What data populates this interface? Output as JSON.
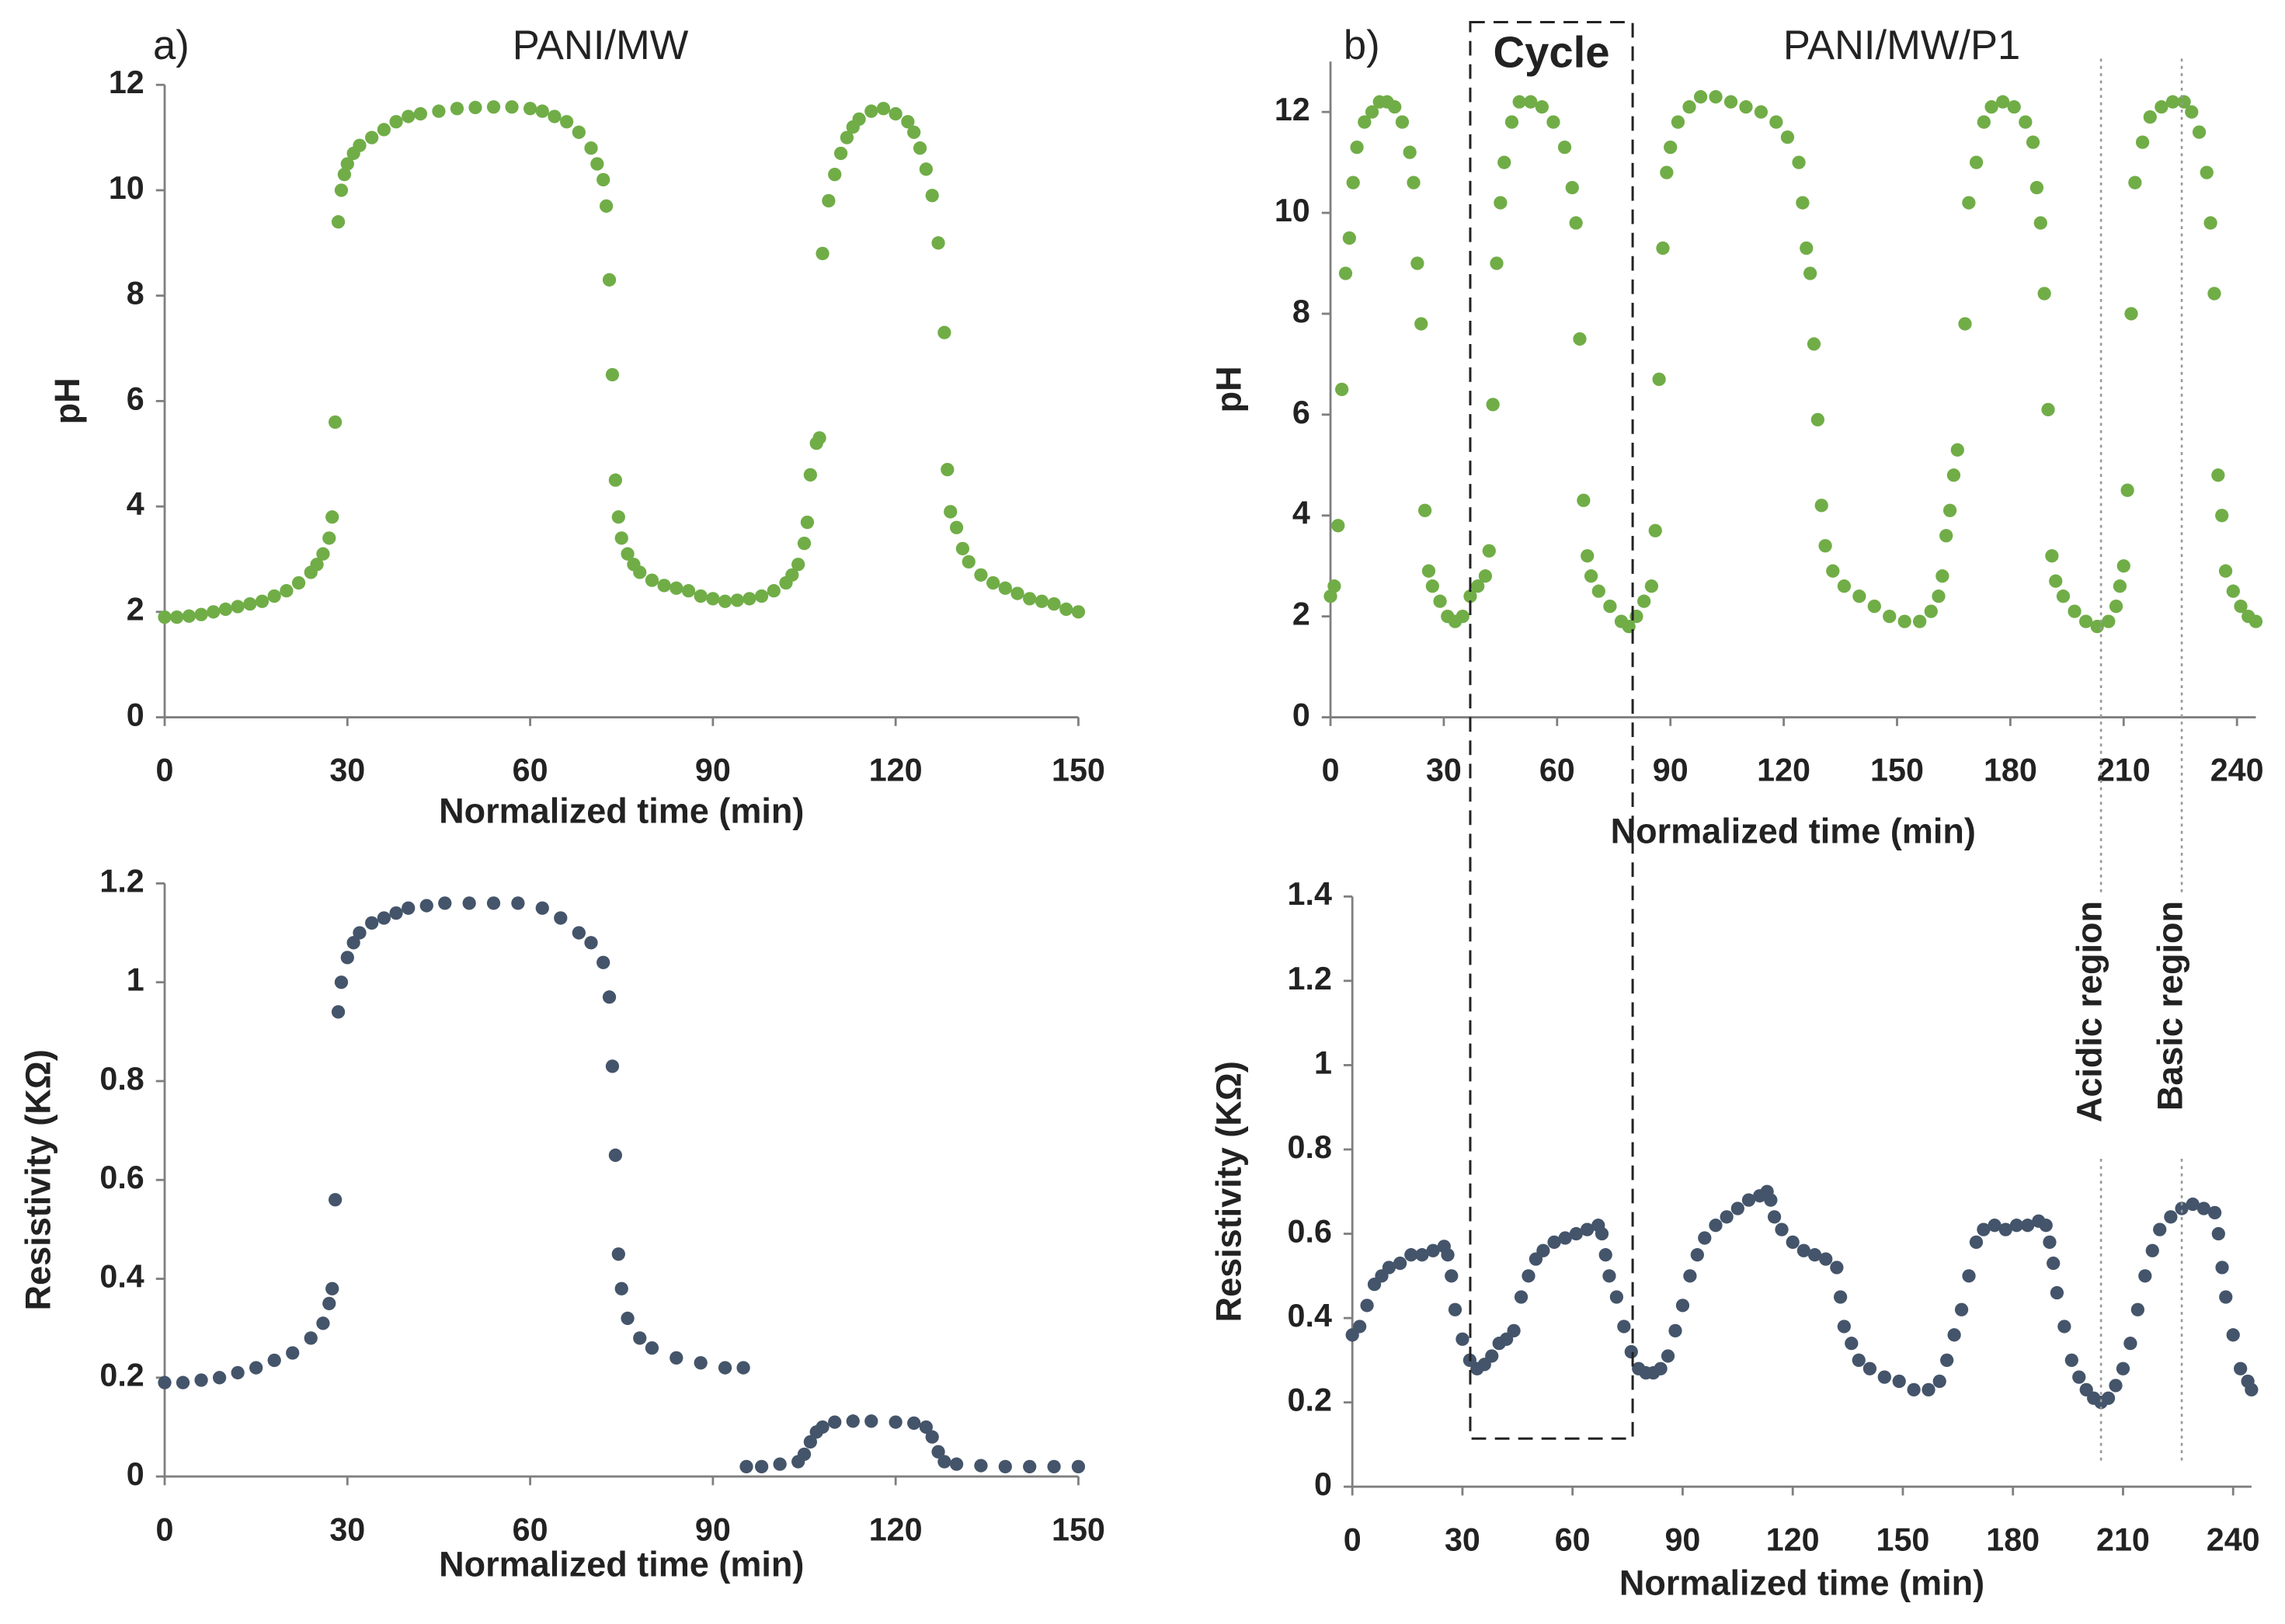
{
  "chart_data": [
    {
      "type": "scatter",
      "panel_label": "a)",
      "title": "PANI/MW",
      "xlabel": "Normalized time (min)",
      "ylabel": "pH",
      "color": "#70ad47",
      "xlim": [
        0,
        150
      ],
      "xticks": [
        0,
        30,
        60,
        90,
        120,
        150
      ],
      "ylim": [
        0,
        12
      ],
      "yticks": [
        0,
        2,
        4,
        6,
        8,
        10,
        12
      ],
      "x": [
        0,
        2,
        4,
        6,
        8,
        10,
        12,
        14,
        16,
        18,
        20,
        22,
        24,
        25,
        26,
        27,
        27.5,
        28,
        28.5,
        29,
        29.5,
        30,
        31,
        32,
        34,
        36,
        38,
        40,
        42,
        45,
        48,
        51,
        54,
        57,
        60,
        62,
        64,
        66,
        68,
        70,
        71,
        72,
        72.5,
        73,
        73.5,
        74,
        74.5,
        75,
        76,
        77,
        78,
        80,
        82,
        84,
        86,
        88,
        90,
        92,
        94,
        96,
        98,
        100,
        102,
        103,
        104,
        105,
        105.5,
        106,
        107,
        107.5,
        108,
        109,
        110,
        111,
        112,
        113,
        114,
        116,
        118,
        120,
        122,
        123,
        124,
        125,
        126,
        127,
        128,
        128.5,
        129,
        130,
        131,
        132,
        134,
        136,
        138,
        140,
        142,
        144,
        146,
        148,
        150
      ],
      "values": [
        1.9,
        1.9,
        1.92,
        1.95,
        2.0,
        2.05,
        2.1,
        2.15,
        2.2,
        2.3,
        2.4,
        2.55,
        2.75,
        2.9,
        3.1,
        3.4,
        3.8,
        5.6,
        9.4,
        10.0,
        10.3,
        10.5,
        10.7,
        10.85,
        11.0,
        11.15,
        11.3,
        11.4,
        11.45,
        11.5,
        11.55,
        11.57,
        11.58,
        11.58,
        11.55,
        11.5,
        11.4,
        11.3,
        11.1,
        10.8,
        10.5,
        10.2,
        9.7,
        8.3,
        6.5,
        4.5,
        3.8,
        3.4,
        3.1,
        2.9,
        2.75,
        2.6,
        2.5,
        2.45,
        2.4,
        2.3,
        2.25,
        2.2,
        2.22,
        2.25,
        2.3,
        2.4,
        2.55,
        2.7,
        2.9,
        3.3,
        3.7,
        4.6,
        5.2,
        5.3,
        8.8,
        9.8,
        10.3,
        10.7,
        11.0,
        11.2,
        11.35,
        11.5,
        11.55,
        11.45,
        11.3,
        11.1,
        10.8,
        10.4,
        9.9,
        9.0,
        7.3,
        4.7,
        3.9,
        3.6,
        3.2,
        2.95,
        2.7,
        2.55,
        2.45,
        2.35,
        2.25,
        2.2,
        2.15,
        2.05,
        2.0
      ]
    },
    {
      "type": "scatter",
      "panel_label": "b)",
      "title": "PANI/MW/P1",
      "xlabel": "Normalized time (min)",
      "ylabel": "pH",
      "color": "#70ad47",
      "xlim": [
        0,
        245
      ],
      "xticks": [
        0,
        30,
        60,
        90,
        120,
        150,
        180,
        210,
        240
      ],
      "ylim": [
        0,
        13
      ],
      "yticks": [
        0,
        2,
        4,
        6,
        8,
        10,
        12
      ],
      "annotations": [
        {
          "text": "Cycle",
          "xrange": [
            37,
            80
          ]
        }
      ],
      "x": [
        0,
        1,
        2,
        3,
        4,
        5,
        6,
        7,
        9,
        11,
        13,
        15,
        17,
        19,
        21,
        22,
        23,
        24,
        25,
        26,
        27,
        29,
        31,
        33,
        35,
        37,
        39,
        41,
        42,
        43,
        44,
        45,
        46,
        48,
        50,
        53,
        56,
        59,
        62,
        64,
        65,
        66,
        67,
        68,
        69,
        71,
        74,
        77,
        79,
        81,
        83,
        85,
        86,
        87,
        88,
        89,
        90,
        92,
        95,
        98,
        102,
        106,
        110,
        114,
        118,
        121,
        124,
        125,
        126,
        127,
        128,
        129,
        130,
        131,
        133,
        136,
        140,
        144,
        148,
        152,
        156,
        159,
        161,
        162,
        163,
        164,
        165,
        166,
        168,
        169,
        171,
        173,
        175,
        178,
        181,
        184,
        186,
        187,
        188,
        189,
        190,
        191,
        192,
        194,
        197,
        200,
        203,
        206,
        208,
        209,
        210,
        211,
        212,
        213,
        215,
        217,
        220,
        223,
        226,
        228,
        230,
        232,
        233,
        234,
        235,
        236,
        237,
        239,
        241,
        243,
        245
      ],
      "values": [
        2.4,
        2.6,
        3.8,
        6.5,
        8.8,
        9.5,
        10.6,
        11.3,
        11.8,
        12.0,
        12.2,
        12.2,
        12.1,
        11.8,
        11.2,
        10.6,
        9.0,
        7.8,
        4.1,
        2.9,
        2.6,
        2.3,
        2.0,
        1.9,
        2.0,
        2.4,
        2.6,
        2.8,
        3.3,
        6.2,
        9.0,
        10.2,
        11.0,
        11.8,
        12.2,
        12.2,
        12.1,
        11.8,
        11.3,
        10.5,
        9.8,
        7.5,
        4.3,
        3.2,
        2.8,
        2.5,
        2.2,
        1.9,
        1.8,
        2.0,
        2.3,
        2.6,
        3.7,
        6.7,
        9.3,
        10.8,
        11.3,
        11.8,
        12.1,
        12.3,
        12.3,
        12.2,
        12.1,
        12.0,
        11.8,
        11.5,
        11.0,
        10.2,
        9.3,
        8.8,
        7.4,
        5.9,
        4.2,
        3.4,
        2.9,
        2.6,
        2.4,
        2.2,
        2.0,
        1.9,
        1.9,
        2.1,
        2.4,
        2.8,
        3.6,
        4.1,
        4.8,
        5.3,
        7.8,
        10.2,
        11.0,
        11.8,
        12.1,
        12.2,
        12.1,
        11.8,
        11.4,
        10.5,
        9.8,
        8.4,
        6.1,
        3.2,
        2.7,
        2.4,
        2.1,
        1.9,
        1.8,
        1.9,
        2.2,
        2.6,
        3.0,
        4.5,
        8.0,
        10.6,
        11.4,
        11.9,
        12.1,
        12.2,
        12.2,
        12.0,
        11.6,
        10.8,
        9.8,
        8.4,
        4.8,
        4.0,
        2.9,
        2.5,
        2.2,
        2.0,
        1.9
      ]
    },
    {
      "type": "scatter",
      "xlabel": "Normalized time (min)",
      "ylabel": "Resistivity (KΩ)",
      "color": "#44546a",
      "xlim": [
        0,
        150
      ],
      "xticks": [
        0,
        30,
        60,
        90,
        120,
        150
      ],
      "ylim": [
        0,
        1.2
      ],
      "yticks": [
        0,
        0.2,
        0.4,
        0.6,
        0.8,
        1,
        1.2
      ],
      "x": [
        0,
        3,
        6,
        9,
        12,
        15,
        18,
        21,
        24,
        26,
        27,
        27.5,
        28,
        28.5,
        29,
        30,
        31,
        32,
        34,
        36,
        38,
        40,
        43,
        46,
        50,
        54,
        58,
        62,
        65,
        68,
        70,
        72,
        73,
        73.5,
        74,
        74.5,
        75,
        76,
        78,
        80,
        84,
        88,
        92,
        95,
        95.5,
        98,
        101,
        104,
        105,
        106,
        107,
        108,
        110,
        113,
        116,
        120,
        123,
        125,
        126,
        127,
        128,
        130,
        134,
        138,
        142,
        146,
        150
      ],
      "values": [
        0.19,
        0.19,
        0.195,
        0.2,
        0.21,
        0.22,
        0.235,
        0.25,
        0.28,
        0.31,
        0.35,
        0.38,
        0.56,
        0.94,
        1.0,
        1.05,
        1.08,
        1.1,
        1.12,
        1.13,
        1.14,
        1.15,
        1.155,
        1.16,
        1.16,
        1.16,
        1.16,
        1.15,
        1.13,
        1.1,
        1.08,
        1.04,
        0.97,
        0.83,
        0.65,
        0.45,
        0.38,
        0.32,
        0.28,
        0.26,
        0.24,
        0.23,
        0.22,
        0.22,
        0.02,
        0.02,
        0.025,
        0.03,
        0.045,
        0.07,
        0.09,
        0.1,
        0.11,
        0.112,
        0.112,
        0.11,
        0.108,
        0.1,
        0.08,
        0.05,
        0.03,
        0.025,
        0.022,
        0.02,
        0.02,
        0.02,
        0.02
      ]
    },
    {
      "type": "scatter",
      "xlabel": "Normalized time (min)",
      "ylabel": "Resistivity (KΩ)",
      "color": "#44546a",
      "xlim": [
        0,
        245
      ],
      "xticks": [
        0,
        30,
        60,
        90,
        120,
        150,
        180,
        210,
        240
      ],
      "ylim": [
        0,
        1.4
      ],
      "yticks": [
        0,
        0.2,
        0.4,
        0.6,
        0.8,
        1,
        1.2,
        1.4
      ],
      "annotations": [
        {
          "text": "Acidic region",
          "x": 204
        },
        {
          "text": "Basic region",
          "x": 226
        }
      ],
      "x": [
        0,
        2,
        4,
        6,
        8,
        10,
        13,
        16,
        19,
        22,
        25,
        26,
        27,
        28,
        30,
        32,
        34,
        36,
        38,
        40,
        42,
        44,
        46,
        48,
        50,
        52,
        55,
        58,
        61,
        64,
        67,
        68,
        69,
        70,
        72,
        74,
        76,
        78,
        80,
        82,
        84,
        86,
        88,
        90,
        92,
        94,
        96,
        99,
        102,
        105,
        108,
        111,
        113,
        114,
        115,
        117,
        120,
        123,
        126,
        129,
        132,
        133,
        134,
        136,
        138,
        141,
        145,
        149,
        153,
        157,
        160,
        162,
        164,
        166,
        168,
        170,
        172,
        175,
        178,
        181,
        184,
        187,
        189,
        190,
        191,
        192,
        194,
        196,
        198,
        200,
        202,
        204,
        206,
        208,
        210,
        212,
        214,
        216,
        218,
        220,
        223,
        226,
        229,
        232,
        235,
        236,
        237,
        238,
        240,
        242,
        244,
        245
      ],
      "values": [
        0.36,
        0.38,
        0.43,
        0.48,
        0.5,
        0.52,
        0.53,
        0.55,
        0.55,
        0.56,
        0.57,
        0.55,
        0.5,
        0.42,
        0.35,
        0.3,
        0.28,
        0.29,
        0.31,
        0.34,
        0.35,
        0.37,
        0.45,
        0.5,
        0.54,
        0.56,
        0.58,
        0.59,
        0.6,
        0.61,
        0.62,
        0.6,
        0.55,
        0.5,
        0.45,
        0.38,
        0.32,
        0.28,
        0.27,
        0.27,
        0.28,
        0.31,
        0.37,
        0.43,
        0.5,
        0.55,
        0.59,
        0.62,
        0.64,
        0.66,
        0.68,
        0.69,
        0.7,
        0.68,
        0.64,
        0.61,
        0.58,
        0.56,
        0.55,
        0.54,
        0.52,
        0.45,
        0.38,
        0.34,
        0.3,
        0.28,
        0.26,
        0.25,
        0.23,
        0.23,
        0.25,
        0.3,
        0.36,
        0.42,
        0.5,
        0.58,
        0.61,
        0.62,
        0.61,
        0.62,
        0.62,
        0.63,
        0.62,
        0.58,
        0.53,
        0.46,
        0.38,
        0.3,
        0.26,
        0.23,
        0.21,
        0.2,
        0.21,
        0.24,
        0.28,
        0.34,
        0.42,
        0.5,
        0.56,
        0.61,
        0.64,
        0.66,
        0.67,
        0.66,
        0.65,
        0.6,
        0.52,
        0.45,
        0.36,
        0.28,
        0.25,
        0.23
      ]
    }
  ]
}
